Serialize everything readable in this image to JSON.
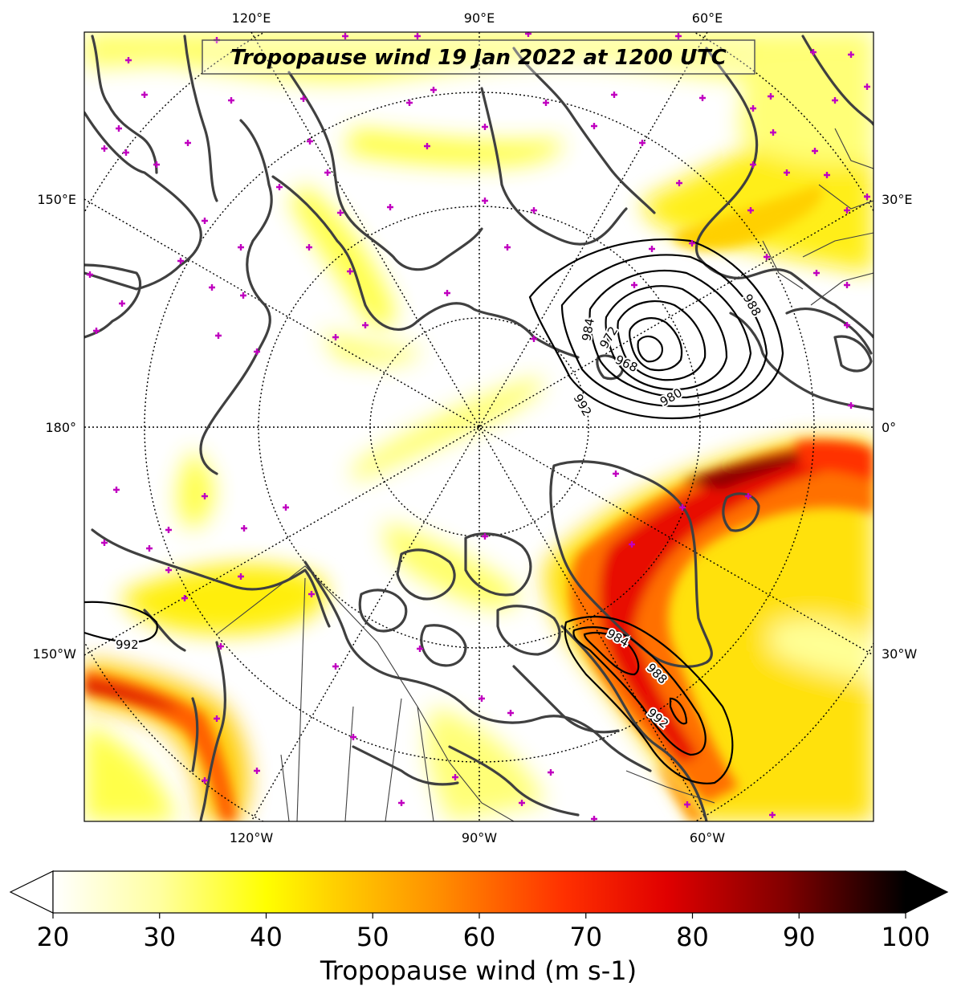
{
  "title": "Tropopause wind 19 Jan 2022 at 1200 UTC",
  "longitude_labels": {
    "top": [
      "120°E",
      "90°E",
      "60°E"
    ],
    "bottom": [
      "120°W",
      "90°W",
      "60°W"
    ],
    "left": [
      "150°E",
      "180°",
      "150°W"
    ],
    "right": [
      "30°E",
      "0°",
      "30°W"
    ]
  },
  "pressure_contour_labels": [
    "984",
    "972",
    "968",
    "980",
    "992",
    "988",
    "984",
    "988",
    "992",
    "992"
  ],
  "colorbar": {
    "label": "Tropopause wind (m s-1)",
    "ticks": [
      "20",
      "30",
      "40",
      "50",
      "60",
      "70",
      "80",
      "90",
      "100"
    ],
    "min": 20,
    "max": 100,
    "extend": "both",
    "colormap": [
      "#ffffff",
      "#ffffa0",
      "#ffff00",
      "#ffd000",
      "#ff9000",
      "#ff3000",
      "#e00000",
      "#800000",
      "#000000"
    ]
  },
  "colors": {
    "coastline": "#404040",
    "markers": "#c000c0",
    "contours": "#000000"
  }
}
